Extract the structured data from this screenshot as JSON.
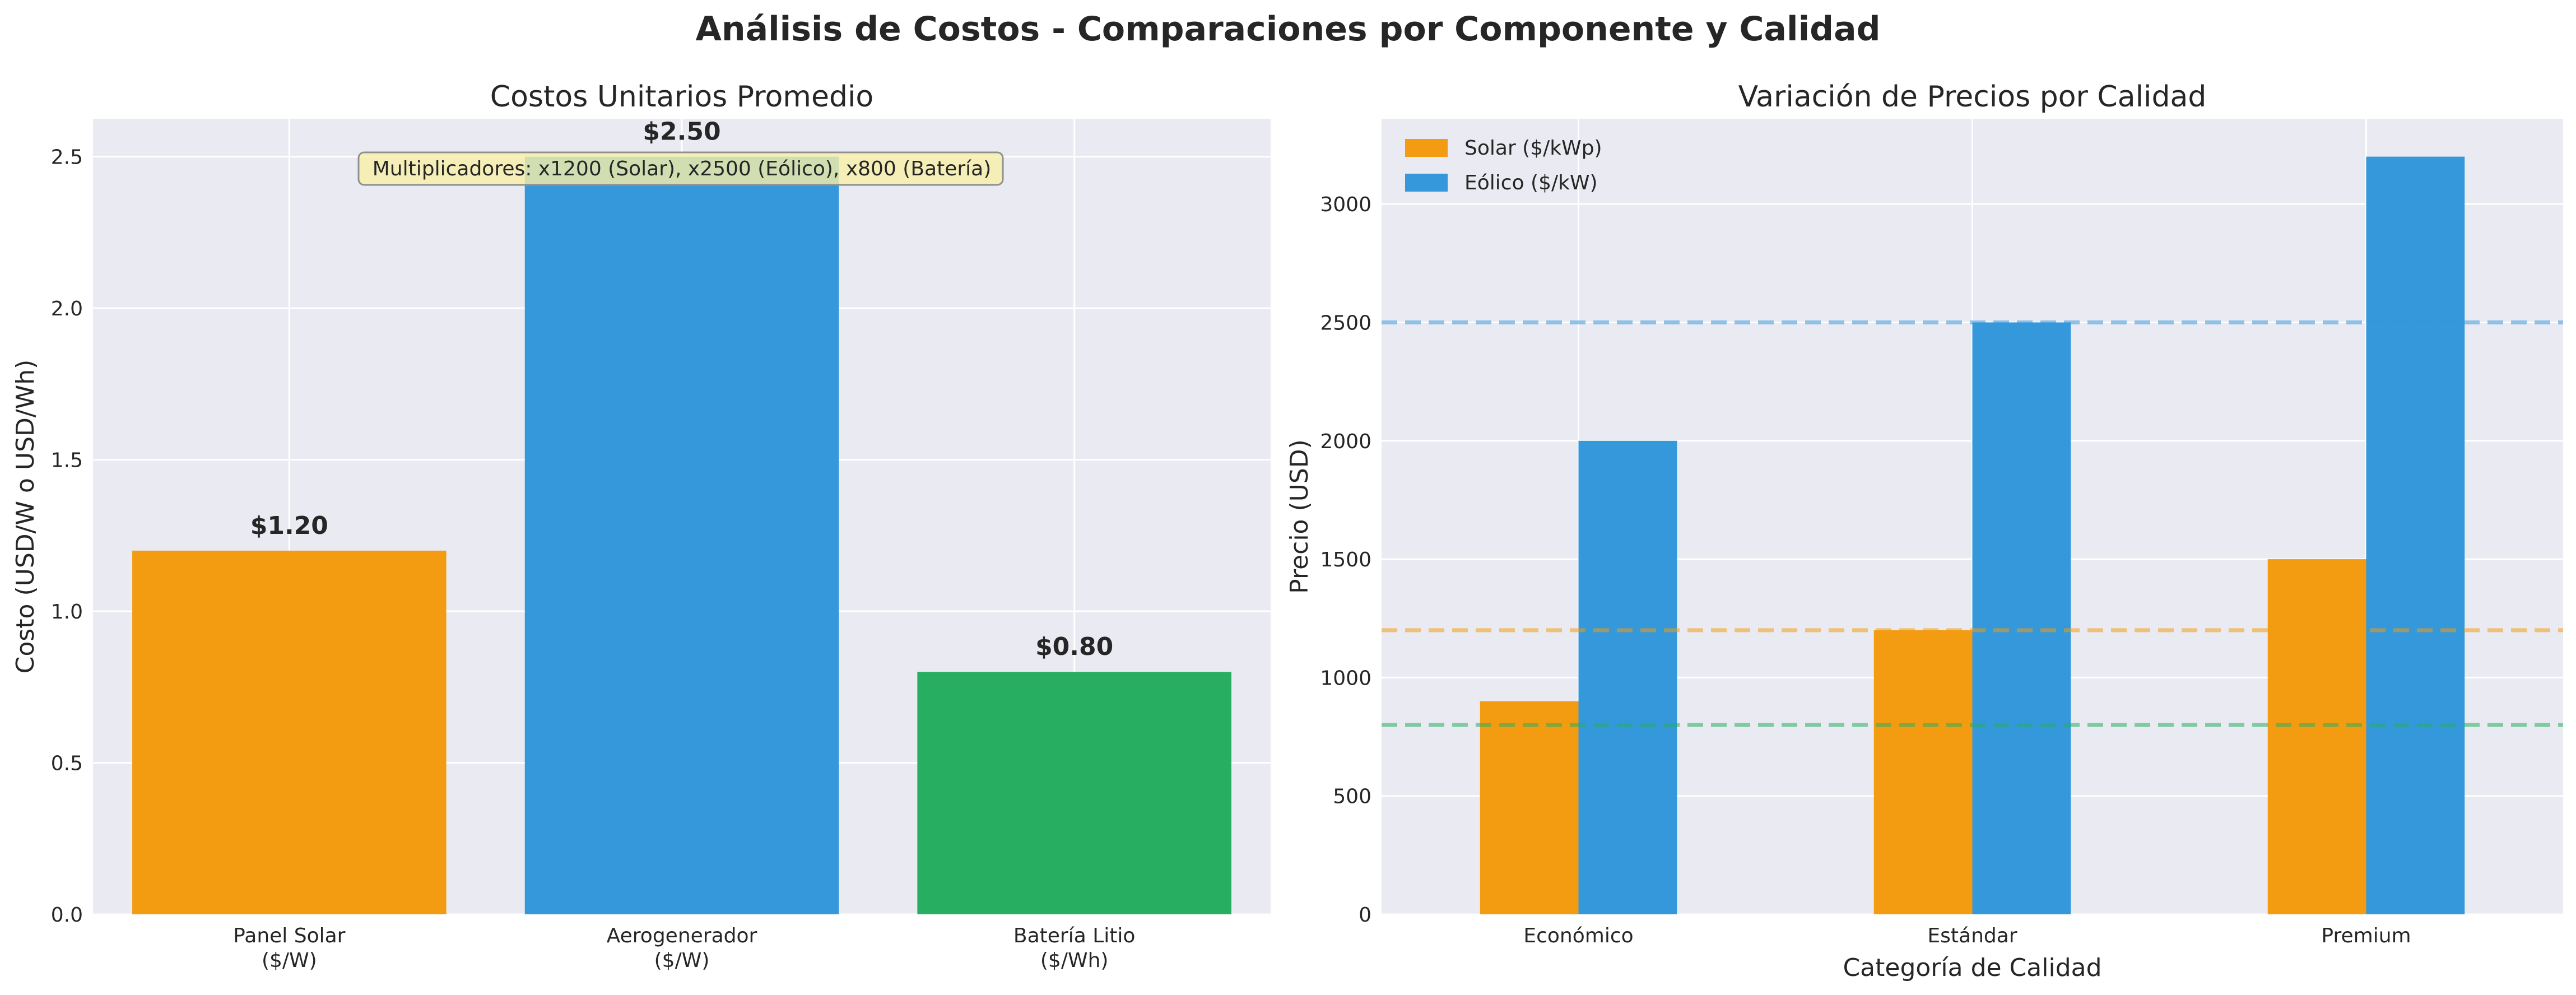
{
  "figure": {
    "suptitle": "Análisis de Costos - Comparaciones por Componente y Calidad"
  },
  "colors": {
    "plot_bg": "#eaeaf2",
    "grid": "#ffffff",
    "text": "#262626",
    "solar": "#f39c12",
    "wind": "#3498db",
    "battery": "#27ae60",
    "annotation_bg": "#f7f0a8",
    "annotation_border": "#8f8f8f"
  },
  "chart_data": [
    {
      "type": "bar",
      "title": "Costos Unitarios Promedio",
      "xlabel": "",
      "ylabel": "Costo (USD/W o USD/Wh)",
      "ylim": [
        0,
        2.625
      ],
      "yticks": [
        0.0,
        0.5,
        1.0,
        1.5,
        2.0,
        2.5
      ],
      "ytick_labels": [
        "0.0",
        "0.5",
        "1.0",
        "1.5",
        "2.0",
        "2.5"
      ],
      "grid": true,
      "categories": [
        [
          "Panel Solar",
          "($/W)"
        ],
        [
          "Aerogenerador",
          "($/W)"
        ],
        [
          "Batería Litio",
          "($/Wh)"
        ]
      ],
      "values": [
        1.2,
        2.5,
        0.8
      ],
      "value_labels": [
        "$1.20",
        "$2.50",
        "$0.80"
      ],
      "bar_colors": [
        "#f39c12",
        "#3498db",
        "#27ae60"
      ],
      "annotation": "Multiplicadores: x1200 (Solar), x2500 (Eólico), x800 (Batería)"
    },
    {
      "type": "bar",
      "title": "Variación de Precios por Calidad",
      "xlabel": "Categoría de Calidad",
      "ylabel": "Precio (USD)",
      "ylim": [
        0,
        3360
      ],
      "yticks": [
        0,
        500,
        1000,
        1500,
        2000,
        2500,
        3000
      ],
      "ytick_labels": [
        "0",
        "500",
        "1000",
        "1500",
        "2000",
        "2500",
        "3000"
      ],
      "grid": true,
      "legend_position": "top-left",
      "categories": [
        "Económico",
        "Estándar",
        "Premium"
      ],
      "series": [
        {
          "name": "Solar ($/kWp)",
          "color": "#f39c12",
          "values": [
            900,
            1200,
            1500
          ]
        },
        {
          "name": "Eólico ($/kW)",
          "color": "#3498db",
          "values": [
            2000,
            2500,
            3200
          ]
        }
      ],
      "reference_lines": [
        {
          "y": 2500,
          "color": "#3498db"
        },
        {
          "y": 1200,
          "color": "#f39c12"
        },
        {
          "y": 800,
          "color": "#27ae60"
        }
      ]
    }
  ]
}
